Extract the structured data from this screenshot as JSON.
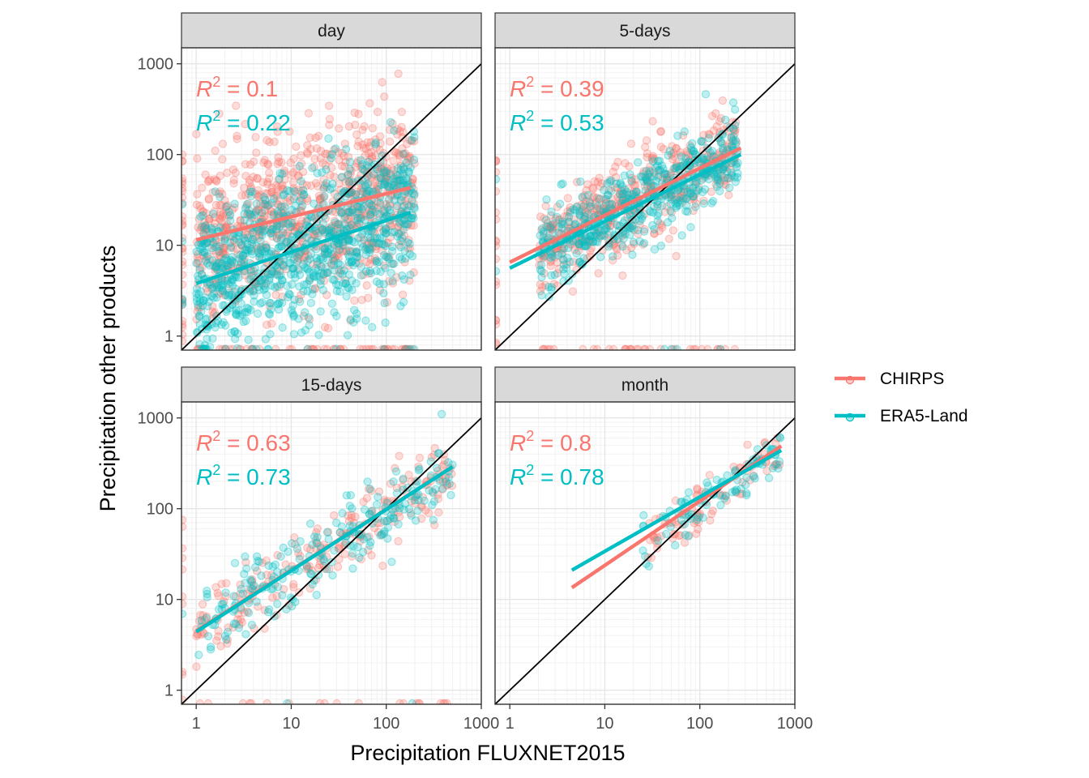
{
  "chart_data": {
    "type": "scatter",
    "xlabel": "Precipitation FLUXNET2015",
    "ylabel": "Precipitation other products",
    "x_scale": "log10",
    "y_scale": "log10",
    "xlim": [
      0.7,
      1000
    ],
    "ylim": [
      0.7,
      1500
    ],
    "x_ticks": [
      "1",
      "10",
      "100",
      "1000"
    ],
    "y_ticks": [
      "1",
      "10",
      "100",
      "1000"
    ],
    "grid": true,
    "reference_line": "1:1",
    "legend": {
      "position": "right",
      "entries": [
        {
          "name": "CHIRPS",
          "color": "#F8766D"
        },
        {
          "name": "ERA5-Land",
          "color": "#00BFC4"
        }
      ]
    },
    "facets": [
      {
        "title": "day",
        "annotations": [
          {
            "series": "CHIRPS",
            "r2": "0.1"
          },
          {
            "series": "ERA5-Land",
            "r2": "0.22"
          }
        ],
        "fits": [
          {
            "series": "CHIRPS",
            "x": [
              1,
              180
            ],
            "y": [
              11.5,
              43
            ]
          },
          {
            "series": "ERA5-Land",
            "x": [
              1,
              180
            ],
            "y": [
              3.8,
              23
            ]
          }
        ],
        "scatter_cloud": [
          {
            "series": "CHIRPS",
            "n": 900,
            "x_log_range": [
              0,
              2.3
            ],
            "y_log_intercept": 1.0,
            "y_log_slope": 0.28,
            "sd": 0.45,
            "zero_rows": 60
          },
          {
            "series": "ERA5-Land",
            "n": 900,
            "x_log_range": [
              0,
              2.3
            ],
            "y_log_intercept": 0.55,
            "y_log_slope": 0.35,
            "sd": 0.42,
            "zero_rows": 10
          }
        ]
      },
      {
        "title": "5-days",
        "annotations": [
          {
            "series": "CHIRPS",
            "r2": "0.39"
          },
          {
            "series": "ERA5-Land",
            "r2": "0.53"
          }
        ],
        "fits": [
          {
            "series": "CHIRPS",
            "x": [
              1,
              270
            ],
            "y": [
              6.5,
              118
            ]
          },
          {
            "series": "ERA5-Land",
            "x": [
              1,
              270
            ],
            "y": [
              5.6,
              100
            ]
          }
        ],
        "scatter_cloud": [
          {
            "series": "CHIRPS",
            "n": 500,
            "x_log_range": [
              0.3,
              2.4
            ],
            "y_log_intercept": 0.8,
            "y_log_slope": 0.52,
            "sd": 0.25,
            "zero_rows": 35
          },
          {
            "series": "ERA5-Land",
            "n": 500,
            "x_log_range": [
              0.3,
              2.4
            ],
            "y_log_intercept": 0.75,
            "y_log_slope": 0.52,
            "sd": 0.22,
            "zero_rows": 4
          }
        ]
      },
      {
        "title": "15-days",
        "annotations": [
          {
            "series": "CHIRPS",
            "r2": "0.63"
          },
          {
            "series": "ERA5-Land",
            "r2": "0.73"
          }
        ],
        "fits": [
          {
            "series": "CHIRPS",
            "x": [
              1,
              500
            ],
            "y": [
              4.5,
              290
            ]
          },
          {
            "series": "ERA5-Land",
            "x": [
              1,
              500
            ],
            "y": [
              4.4,
              290
            ]
          }
        ],
        "scatter_cloud": [
          {
            "series": "CHIRPS",
            "n": 220,
            "x_log_range": [
              0,
              2.7
            ],
            "y_log_intercept": 0.65,
            "y_log_slope": 0.67,
            "sd": 0.2,
            "zero_rows": 20
          },
          {
            "series": "ERA5-Land",
            "n": 220,
            "x_log_range": [
              0,
              2.7
            ],
            "y_log_intercept": 0.65,
            "y_log_slope": 0.67,
            "sd": 0.2,
            "zero_rows": 2
          }
        ]
      },
      {
        "title": "month",
        "annotations": [
          {
            "series": "CHIRPS",
            "r2": "0.8"
          },
          {
            "series": "ERA5-Land",
            "r2": "0.78"
          }
        ],
        "fits": [
          {
            "series": "CHIRPS",
            "x": [
              4.5,
              720
            ],
            "y": [
              13.5,
              490
            ]
          },
          {
            "series": "ERA5-Land",
            "x": [
              4.5,
              720
            ],
            "y": [
              21,
              440
            ]
          }
        ],
        "scatter_cloud": [
          {
            "series": "CHIRPS",
            "n": 90,
            "x_log_range": [
              1.4,
              2.85
            ],
            "y_log_intercept": 0.45,
            "y_log_slope": 0.78,
            "sd": 0.13,
            "zero_rows": 0
          },
          {
            "series": "ERA5-Land",
            "n": 90,
            "x_log_range": [
              1.4,
              2.85
            ],
            "y_log_intercept": 0.65,
            "y_log_slope": 0.7,
            "sd": 0.12,
            "zero_rows": 0
          }
        ]
      }
    ]
  }
}
